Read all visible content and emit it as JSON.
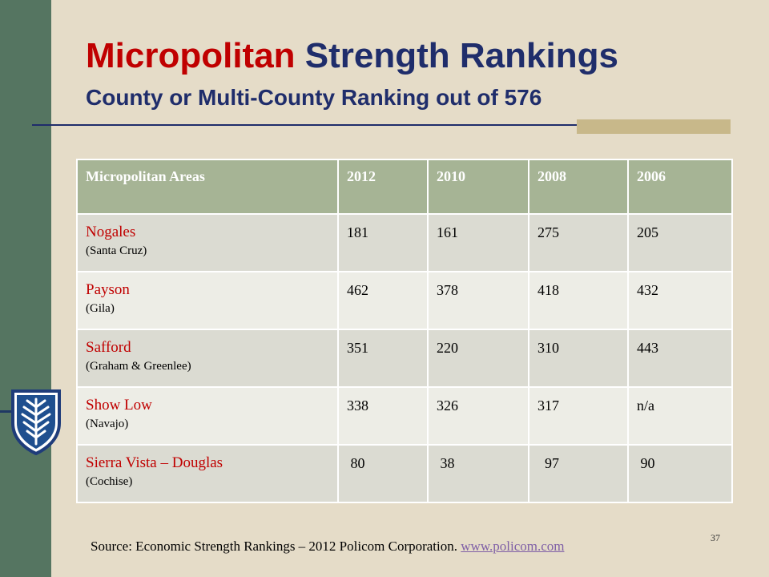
{
  "slide": {
    "title_part1": "Micropolitan",
    "title_part2": "Strength Rankings",
    "subtitle": "County or Multi-County Ranking out of 576",
    "page_number": "37"
  },
  "table": {
    "headers": [
      "Micropolitan Areas",
      "2012",
      "2010",
      "2008",
      "2006"
    ],
    "rows": [
      {
        "area": "Nogales",
        "county": "(Santa Cruz)",
        "values": [
          "181",
          "161",
          "275",
          "205"
        ]
      },
      {
        "area": "Payson",
        "county": "(Gila)",
        "values": [
          "462",
          "378",
          "418",
          "432"
        ]
      },
      {
        "area": "Safford",
        "county": "(Graham & Greenlee)",
        "values": [
          "351",
          "220",
          "310",
          "443"
        ]
      },
      {
        "area": "Show Low",
        "county": "(Navajo)",
        "values": [
          "338",
          "326",
          "317",
          "n/a"
        ]
      },
      {
        "area": "Sierra Vista – Douglas",
        "county": "(Cochise)",
        "values": [
          " 80",
          " 38",
          "  97",
          " 90"
        ]
      }
    ]
  },
  "source": {
    "text": "Source:  Economic Strength Rankings – 2012 Policom Corporation.  ",
    "link": "www.policom.com"
  },
  "logo": {
    "icon": "university-shield-icon"
  },
  "colors": {
    "background": "#e5dcc8",
    "side_bar": "#557561",
    "title_red": "#c00000",
    "title_blue": "#1f2d6b",
    "header_fill": "#a6b495",
    "row_fill_a": "#dbdbd2",
    "row_fill_b": "#ededE6",
    "link": "#7f5fa6"
  }
}
